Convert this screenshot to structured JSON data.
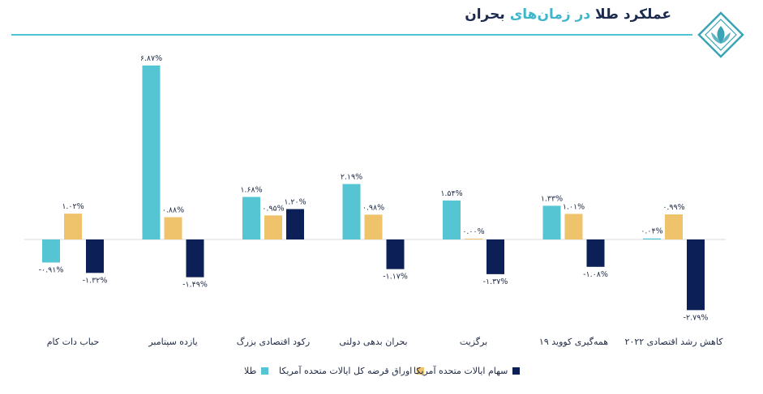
{
  "header": {
    "title_part1": "عملکرد طلا",
    "title_part2": "در زمان‌های",
    "title_part3": "بحران"
  },
  "colors": {
    "gold": "#56c5d3",
    "bonds": "#eec36c",
    "stocks": "#0c1f57",
    "rule": "#4fc3d3",
    "logo": "#3aa3b5"
  },
  "chart_data": {
    "type": "bar",
    "categories": [
      "حباب دات کام",
      "یازده سپتامبر",
      "رکود اقتصادی بزرگ",
      "بحران بدهی دولتی",
      "برگزیت",
      "همه‌گیری کووید ۱۹",
      "کاهش رشد اقتصادی ۲۰۲۲"
    ],
    "series": [
      {
        "name": "طلا",
        "values": [
          -0.91,
          6.87,
          1.68,
          2.19,
          1.54,
          1.33,
          0.04
        ],
        "labels": [
          "-۰.۹۱%",
          "۶.۸۷%",
          "۱.۶۸%",
          "۲.۱۹%",
          "۱.۵۴%",
          "۱.۳۳%",
          "۰.۰۴%"
        ]
      },
      {
        "name": "اوراق قرضه کل ایالات متحده آمریکا",
        "values": [
          1.02,
          0.88,
          0.95,
          0.98,
          0.0,
          1.01,
          0.99
        ],
        "labels": [
          "۱.۰۲%",
          "۰.۸۸%",
          "۰.۹۵%",
          "۰.۹۸%",
          "۰.۰۰%",
          "۱.۰۱%",
          "۰.۹۹%"
        ]
      },
      {
        "name": "سهام ایالات متحده آمریکا",
        "values": [
          -1.32,
          -1.49,
          1.2,
          -1.17,
          -1.37,
          -1.08,
          -2.79
        ],
        "labels": [
          "-۱.۳۲%",
          "-۱.۴۹%",
          "۱.۲۰%",
          "-۱.۱۷%",
          "-۱.۳۷%",
          "-۱.۰۸%",
          "-۲.۷۹%"
        ]
      }
    ],
    "grid": false,
    "legend_position": "bottom"
  }
}
